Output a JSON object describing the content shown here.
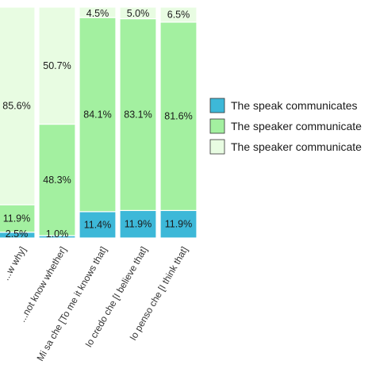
{
  "chart_data": {
    "type": "bar",
    "stacked": true,
    "orientation": "vertical",
    "ylim": [
      0,
      100
    ],
    "grid": false,
    "legend_position": "right",
    "categories": [
      "...w why]",
      "...not know whether]",
      "Mi sa che [To me it knows that]",
      "Io credo che [I believe that]",
      "Io penso che [I think that]"
    ],
    "series": [
      {
        "name": "The speak communicates",
        "color": "#3db8d8",
        "values": [
          2.5,
          1.0,
          11.4,
          11.9,
          11.9
        ],
        "labels": [
          "2.5%",
          "1.0%",
          "11.4%",
          "11.9%",
          "11.9%"
        ]
      },
      {
        "name": "The speaker communicate",
        "color": "#a3f0a0",
        "values": [
          11.9,
          48.3,
          84.1,
          83.1,
          81.6
        ],
        "labels": [
          "11.9%",
          "48.3%",
          "84.1%",
          "83.1%",
          "81.6%"
        ]
      },
      {
        "name": "The speaker communicate",
        "color": "#e8fce2",
        "values": [
          85.6,
          50.7,
          4.5,
          5.0,
          6.5
        ],
        "labels": [
          "85.6%",
          "50.7%",
          "4.5%",
          "5.0%",
          "6.5%"
        ]
      }
    ]
  }
}
